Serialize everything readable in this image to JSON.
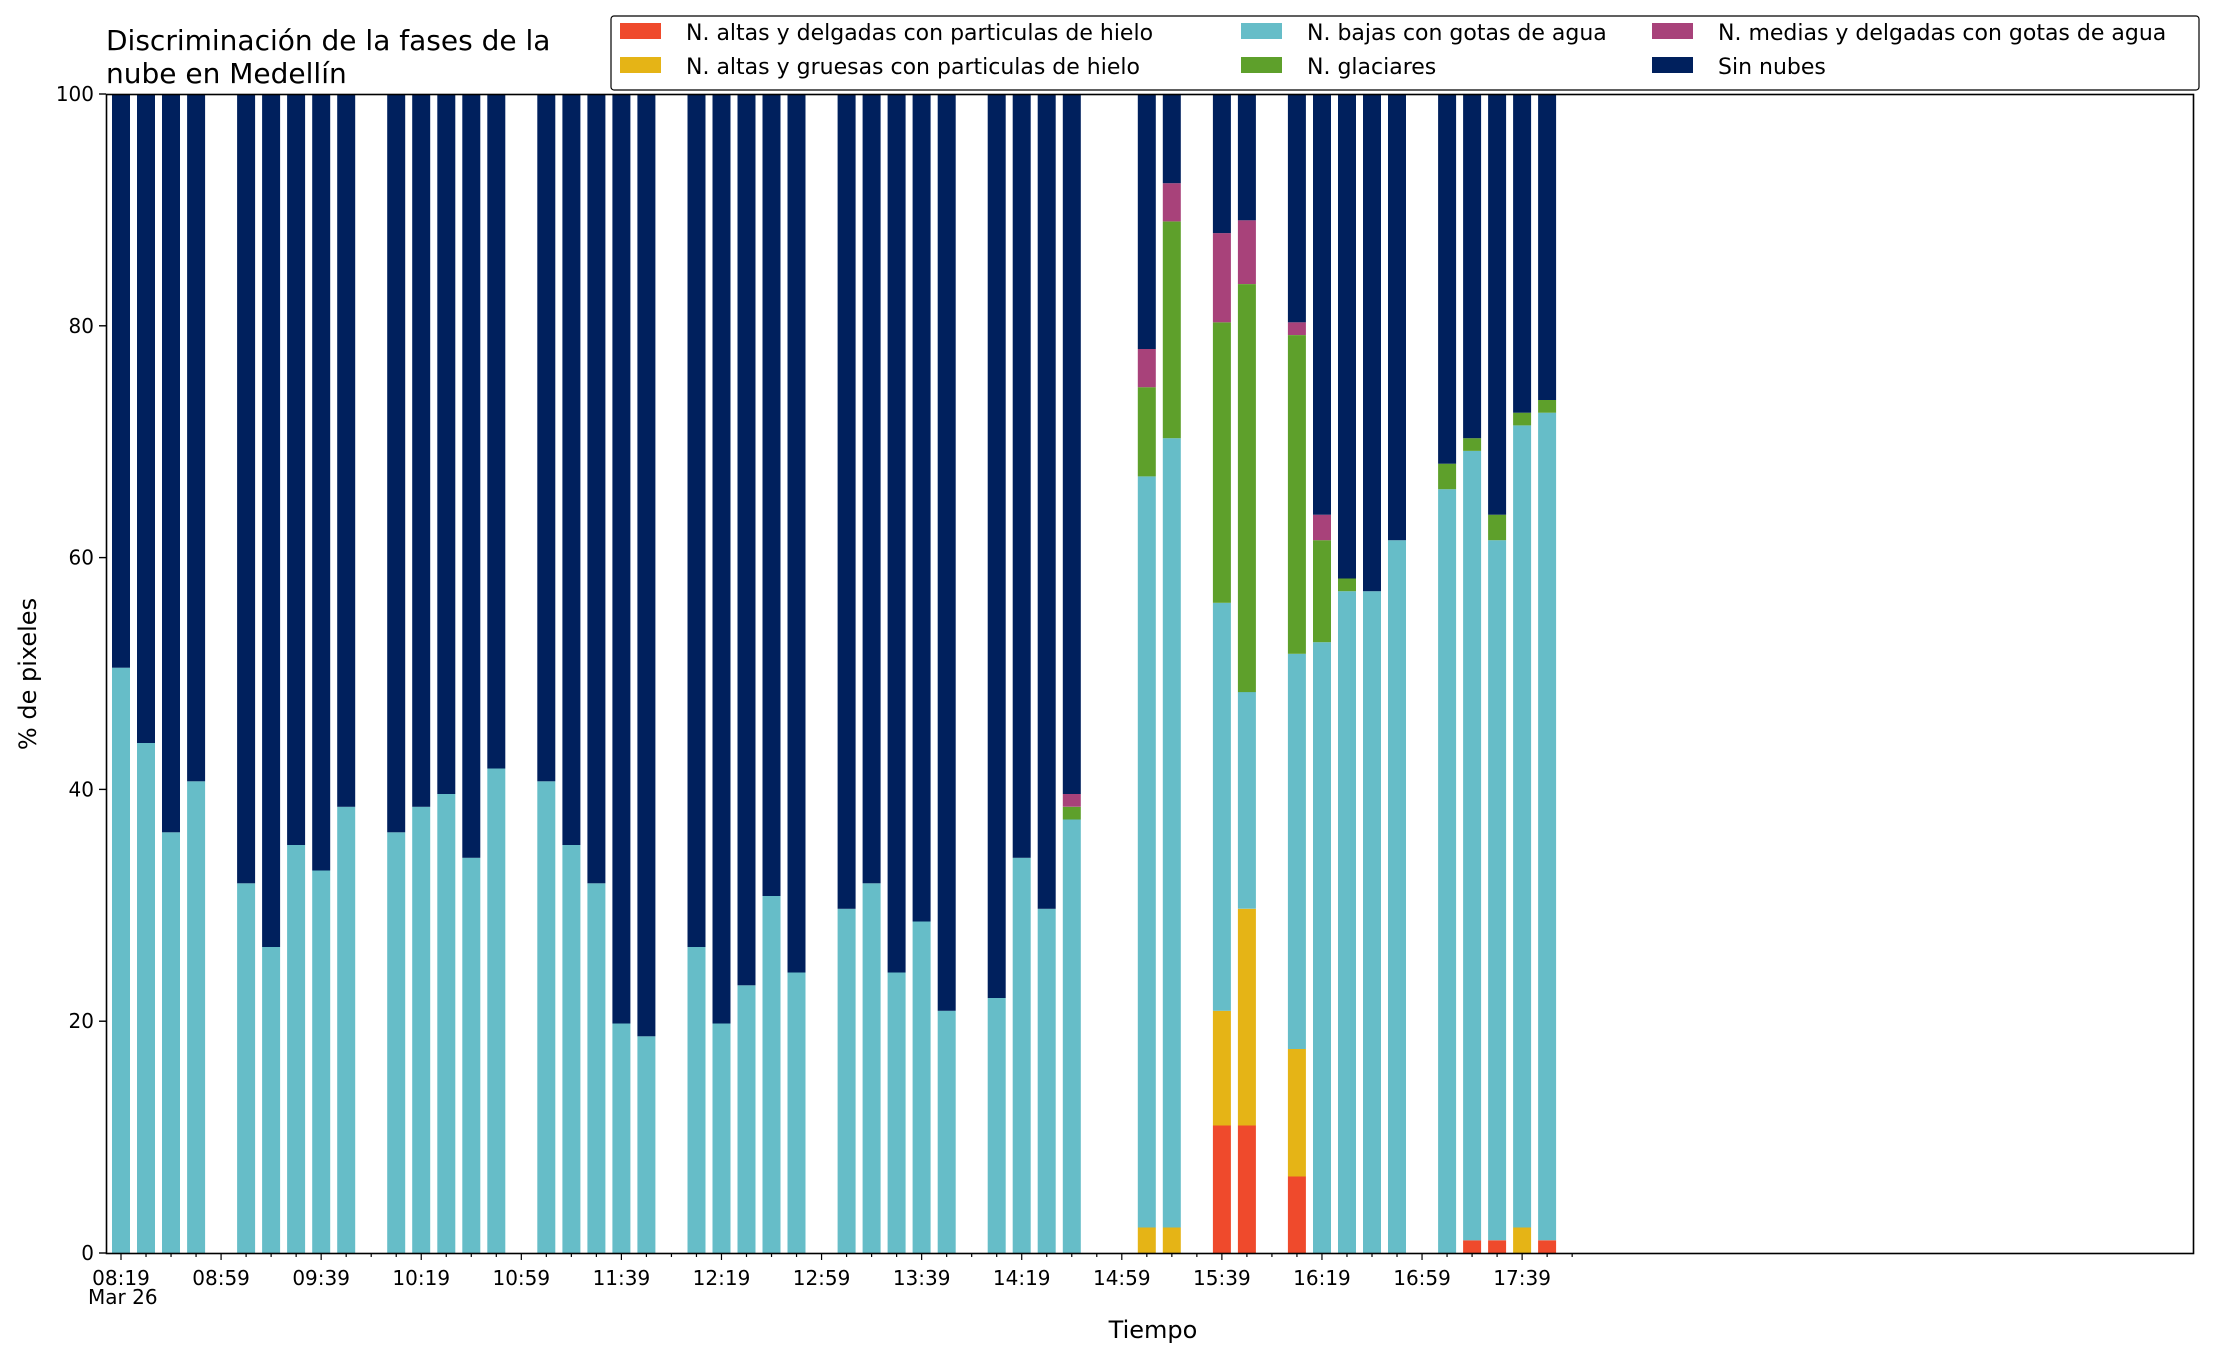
{
  "chart_data": {
    "type": "bar",
    "stacked": true,
    "title": "Discriminación de la fases de la nube en Medellín",
    "title_lines": [
      "Discriminación de la fases de la",
      "nube en Medellín"
    ],
    "xlabel": "Tiempo",
    "ylabel": "% de pixeles",
    "ylim": [
      0,
      100
    ],
    "y_ticks": [
      0,
      20,
      40,
      60,
      80,
      100
    ],
    "x_tick_labels": [
      "08:19",
      "08:59",
      "09:39",
      "10:19",
      "10:59",
      "11:39",
      "12:19",
      "12:59",
      "13:39",
      "14:19",
      "14:59",
      "15:39",
      "16:19",
      "16:59",
      "17:39"
    ],
    "x_date_label": "Mar 26",
    "x_start_time": "08:19",
    "x_end_time": "17:59",
    "interval_minutes": 10,
    "bar_step_minutes": 10,
    "grid": false,
    "legend_position": "top-right",
    "legend_columns": 3,
    "colors": {
      "altas_delgadas": "#ef4a2c",
      "altas_gruesas": "#e5b416",
      "bajas_agua": "#66bdc8",
      "glaciares": "#5ea02b",
      "medias_delgadas": "#a8427a",
      "sin_nubes": "#00205d"
    },
    "series": [
      {
        "key": "altas_delgadas",
        "name": "N. altas y delgadas con particulas de hielo"
      },
      {
        "key": "altas_gruesas",
        "name": "N. altas y gruesas con particulas de hielo"
      },
      {
        "key": "bajas_agua",
        "name": "N. bajas con gotas de agua"
      },
      {
        "key": "glaciares",
        "name": "N. glaciares"
      },
      {
        "key": "medias_delgadas",
        "name": "N. medias y delgadas con gotas de agua"
      },
      {
        "key": "sin_nubes",
        "name": "Sin nubes"
      }
    ],
    "bars": [
      {
        "time": "08:19",
        "altas_delgadas": 0,
        "altas_gruesas": 0,
        "bajas_agua": 50.5,
        "glaciares": 0,
        "medias_delgadas": 0,
        "sin_nubes": 49.5
      },
      {
        "time": "08:29",
        "altas_delgadas": 0,
        "altas_gruesas": 0,
        "bajas_agua": 44,
        "glaciares": 0,
        "medias_delgadas": 0,
        "sin_nubes": 56
      },
      {
        "time": "08:39",
        "altas_delgadas": 0,
        "altas_gruesas": 0,
        "bajas_agua": 36.3,
        "glaciares": 0,
        "medias_delgadas": 0,
        "sin_nubes": 63.7
      },
      {
        "time": "08:49",
        "altas_delgadas": 0,
        "altas_gruesas": 0,
        "bajas_agua": 40.7,
        "glaciares": 0,
        "medias_delgadas": 0,
        "sin_nubes": 59.3
      },
      {
        "time": "09:09",
        "altas_delgadas": 0,
        "altas_gruesas": 0,
        "bajas_agua": 31.9,
        "glaciares": 0,
        "medias_delgadas": 0,
        "sin_nubes": 68.1
      },
      {
        "time": "09:19",
        "altas_delgadas": 0,
        "altas_gruesas": 0,
        "bajas_agua": 26.4,
        "glaciares": 0,
        "medias_delgadas": 0,
        "sin_nubes": 73.6
      },
      {
        "time": "09:29",
        "altas_delgadas": 0,
        "altas_gruesas": 0,
        "bajas_agua": 35.2,
        "glaciares": 0,
        "medias_delgadas": 0,
        "sin_nubes": 64.8
      },
      {
        "time": "09:39",
        "altas_delgadas": 0,
        "altas_gruesas": 0,
        "bajas_agua": 33,
        "glaciares": 0,
        "medias_delgadas": 0,
        "sin_nubes": 67
      },
      {
        "time": "09:49",
        "altas_delgadas": 0,
        "altas_gruesas": 0,
        "bajas_agua": 38.5,
        "glaciares": 0,
        "medias_delgadas": 0,
        "sin_nubes": 61.5
      },
      {
        "time": "10:09",
        "altas_delgadas": 0,
        "altas_gruesas": 0,
        "bajas_agua": 36.3,
        "glaciares": 0,
        "medias_delgadas": 0,
        "sin_nubes": 63.7
      },
      {
        "time": "10:19",
        "altas_delgadas": 0,
        "altas_gruesas": 0,
        "bajas_agua": 38.5,
        "glaciares": 0,
        "medias_delgadas": 0,
        "sin_nubes": 61.5
      },
      {
        "time": "10:29",
        "altas_delgadas": 0,
        "altas_gruesas": 0,
        "bajas_agua": 39.6,
        "glaciares": 0,
        "medias_delgadas": 0,
        "sin_nubes": 60.4
      },
      {
        "time": "10:39",
        "altas_delgadas": 0,
        "altas_gruesas": 0,
        "bajas_agua": 34.1,
        "glaciares": 0,
        "medias_delgadas": 0,
        "sin_nubes": 65.9
      },
      {
        "time": "10:49",
        "altas_delgadas": 0,
        "altas_gruesas": 0,
        "bajas_agua": 41.8,
        "glaciares": 0,
        "medias_delgadas": 0,
        "sin_nubes": 58.2
      },
      {
        "time": "11:09",
        "altas_delgadas": 0,
        "altas_gruesas": 0,
        "bajas_agua": 40.7,
        "glaciares": 0,
        "medias_delgadas": 0,
        "sin_nubes": 59.3
      },
      {
        "time": "11:19",
        "altas_delgadas": 0,
        "altas_gruesas": 0,
        "bajas_agua": 35.2,
        "glaciares": 0,
        "medias_delgadas": 0,
        "sin_nubes": 64.8
      },
      {
        "time": "11:29",
        "altas_delgadas": 0,
        "altas_gruesas": 0,
        "bajas_agua": 31.9,
        "glaciares": 0,
        "medias_delgadas": 0,
        "sin_nubes": 68.1
      },
      {
        "time": "11:39",
        "altas_delgadas": 0,
        "altas_gruesas": 0,
        "bajas_agua": 19.8,
        "glaciares": 0,
        "medias_delgadas": 0,
        "sin_nubes": 80.2
      },
      {
        "time": "11:49",
        "altas_delgadas": 0,
        "altas_gruesas": 0,
        "bajas_agua": 18.7,
        "glaciares": 0,
        "medias_delgadas": 0,
        "sin_nubes": 81.3
      },
      {
        "time": "12:09",
        "altas_delgadas": 0,
        "altas_gruesas": 0,
        "bajas_agua": 26.4,
        "glaciares": 0,
        "medias_delgadas": 0,
        "sin_nubes": 73.6
      },
      {
        "time": "12:19",
        "altas_delgadas": 0,
        "altas_gruesas": 0,
        "bajas_agua": 19.8,
        "glaciares": 0,
        "medias_delgadas": 0,
        "sin_nubes": 80.2
      },
      {
        "time": "12:29",
        "altas_delgadas": 0,
        "altas_gruesas": 0,
        "bajas_agua": 23.1,
        "glaciares": 0,
        "medias_delgadas": 0,
        "sin_nubes": 76.9
      },
      {
        "time": "12:39",
        "altas_delgadas": 0,
        "altas_gruesas": 0,
        "bajas_agua": 30.8,
        "glaciares": 0,
        "medias_delgadas": 0,
        "sin_nubes": 69.2
      },
      {
        "time": "12:49",
        "altas_delgadas": 0,
        "altas_gruesas": 0,
        "bajas_agua": 24.2,
        "glaciares": 0,
        "medias_delgadas": 0,
        "sin_nubes": 75.8
      },
      {
        "time": "13:09",
        "altas_delgadas": 0,
        "altas_gruesas": 0,
        "bajas_agua": 29.7,
        "glaciares": 0,
        "medias_delgadas": 0,
        "sin_nubes": 70.3
      },
      {
        "time": "13:19",
        "altas_delgadas": 0,
        "altas_gruesas": 0,
        "bajas_agua": 31.9,
        "glaciares": 0,
        "medias_delgadas": 0,
        "sin_nubes": 68.1
      },
      {
        "time": "13:29",
        "altas_delgadas": 0,
        "altas_gruesas": 0,
        "bajas_agua": 24.2,
        "glaciares": 0,
        "medias_delgadas": 0,
        "sin_nubes": 75.8
      },
      {
        "time": "13:39",
        "altas_delgadas": 0,
        "altas_gruesas": 0,
        "bajas_agua": 28.6,
        "glaciares": 0,
        "medias_delgadas": 0,
        "sin_nubes": 71.4
      },
      {
        "time": "13:49",
        "altas_delgadas": 0,
        "altas_gruesas": 0,
        "bajas_agua": 20.9,
        "glaciares": 0,
        "medias_delgadas": 0,
        "sin_nubes": 79.1
      },
      {
        "time": "14:09",
        "altas_delgadas": 0,
        "altas_gruesas": 0,
        "bajas_agua": 22,
        "glaciares": 0,
        "medias_delgadas": 0,
        "sin_nubes": 78
      },
      {
        "time": "14:19",
        "altas_delgadas": 0,
        "altas_gruesas": 0,
        "bajas_agua": 34.1,
        "glaciares": 0,
        "medias_delgadas": 0,
        "sin_nubes": 65.9
      },
      {
        "time": "14:29",
        "altas_delgadas": 0,
        "altas_gruesas": 0,
        "bajas_agua": 29.7,
        "glaciares": 0,
        "medias_delgadas": 0,
        "sin_nubes": 70.3
      },
      {
        "time": "14:39",
        "altas_delgadas": 0,
        "altas_gruesas": 0,
        "bajas_agua": 37.4,
        "glaciares": 1.1,
        "medias_delgadas": 1.1,
        "sin_nubes": 60.4
      },
      {
        "time": "15:09",
        "altas_delgadas": 0,
        "altas_gruesas": 2.2,
        "bajas_agua": 64.8,
        "glaciares": 7.7,
        "medias_delgadas": 3.3,
        "sin_nubes": 22
      },
      {
        "time": "15:19",
        "altas_delgadas": 0,
        "altas_gruesas": 2.2,
        "bajas_agua": 68.1,
        "glaciares": 18.7,
        "medias_delgadas": 3.3,
        "sin_nubes": 7.7
      },
      {
        "time": "15:39",
        "altas_delgadas": 11,
        "altas_gruesas": 9.9,
        "bajas_agua": 35.2,
        "glaciares": 24.2,
        "medias_delgadas": 7.7,
        "sin_nubes": 12
      },
      {
        "time": "15:49",
        "altas_delgadas": 11,
        "altas_gruesas": 18.7,
        "bajas_agua": 18.7,
        "glaciares": 35.2,
        "medias_delgadas": 5.5,
        "sin_nubes": 10.9
      },
      {
        "time": "16:09",
        "altas_delgadas": 6.6,
        "altas_gruesas": 11,
        "bajas_agua": 34.1,
        "glaciares": 27.5,
        "medias_delgadas": 1.1,
        "sin_nubes": 19.7
      },
      {
        "time": "16:19",
        "altas_delgadas": 0,
        "altas_gruesas": 0,
        "bajas_agua": 52.7,
        "glaciares": 8.8,
        "medias_delgadas": 2.2,
        "sin_nubes": 36.3
      },
      {
        "time": "16:29",
        "altas_delgadas": 0,
        "altas_gruesas": 0,
        "bajas_agua": 57.1,
        "glaciares": 1.1,
        "medias_delgadas": 0,
        "sin_nubes": 41.8
      },
      {
        "time": "16:39",
        "altas_delgadas": 0,
        "altas_gruesas": 0,
        "bajas_agua": 57.1,
        "glaciares": 0,
        "medias_delgadas": 0,
        "sin_nubes": 42.9
      },
      {
        "time": "16:49",
        "altas_delgadas": 0,
        "altas_gruesas": 0,
        "bajas_agua": 61.5,
        "glaciares": 0,
        "medias_delgadas": 0,
        "sin_nubes": 38.5
      },
      {
        "time": "17:09",
        "altas_delgadas": 0,
        "altas_gruesas": 0,
        "bajas_agua": 65.9,
        "glaciares": 2.2,
        "medias_delgadas": 0,
        "sin_nubes": 31.9
      },
      {
        "time": "17:19",
        "altas_delgadas": 1.1,
        "altas_gruesas": 0,
        "bajas_agua": 68.1,
        "glaciares": 1.1,
        "medias_delgadas": 0,
        "sin_nubes": 29.7
      },
      {
        "time": "17:29",
        "altas_delgadas": 1.1,
        "altas_gruesas": 0,
        "bajas_agua": 60.4,
        "glaciares": 2.2,
        "medias_delgadas": 0,
        "sin_nubes": 36.3
      },
      {
        "time": "17:39",
        "altas_delgadas": 0,
        "altas_gruesas": 2.2,
        "bajas_agua": 69.2,
        "glaciares": 1.1,
        "medias_delgadas": 0,
        "sin_nubes": 27.5
      },
      {
        "time": "17:49",
        "altas_delgadas": 1.1,
        "altas_gruesas": 0,
        "bajas_agua": 71.4,
        "glaciares": 1.1,
        "medias_delgadas": 0,
        "sin_nubes": 26.4
      }
    ]
  }
}
